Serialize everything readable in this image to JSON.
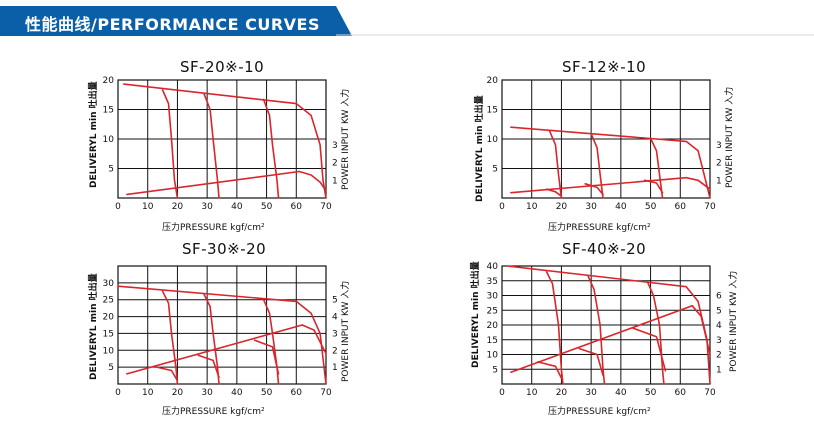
{
  "header": {
    "title": "性能曲线/PERFORMANCE CURVES",
    "bar_color": "#0a5fa8",
    "line_color": "#cfd8e3"
  },
  "colors": {
    "curve": "#d9262c",
    "grid": "#111111"
  },
  "chart_data": [
    {
      "type": "line",
      "title": "SF-20※-10",
      "xlabel": "压力PRESSURE kgf/cm²",
      "ylabel": "DELIVERYL min 吐出量",
      "y2label": "POWER INPUT KW 入力",
      "xlim": [
        0,
        70
      ],
      "x_ticks": [
        0,
        10,
        20,
        30,
        40,
        50,
        60,
        70
      ],
      "ylim": [
        0,
        20
      ],
      "y_ticks": [
        5,
        10,
        15,
        20
      ],
      "y2lim": [
        0,
        6.67
      ],
      "y2_ticks": [
        1,
        2,
        3
      ],
      "grid": true,
      "series": [
        {
          "axis": "left",
          "points": [
            [
              2,
              19.3
            ],
            [
              60,
              16
            ],
            [
              65,
              14
            ],
            [
              68,
              9
            ],
            [
              69,
              3
            ],
            [
              70,
              0
            ]
          ]
        },
        {
          "axis": "left",
          "points": [
            [
              15,
              18.3
            ],
            [
              17,
              16
            ],
            [
              18,
              10
            ],
            [
              19,
              3
            ],
            [
              20,
              0
            ]
          ]
        },
        {
          "axis": "left",
          "points": [
            [
              29,
              17.6
            ],
            [
              31,
              15
            ],
            [
              32,
              10
            ],
            [
              33.5,
              3
            ],
            [
              34,
              0
            ]
          ]
        },
        {
          "axis": "left",
          "points": [
            [
              49,
              16.7
            ],
            [
              51,
              14
            ],
            [
              52,
              9
            ],
            [
              53.5,
              3
            ],
            [
              54,
              0
            ]
          ]
        },
        {
          "axis": "right",
          "points": [
            [
              3,
              0.2
            ],
            [
              61,
              1.5
            ]
          ]
        },
        {
          "axis": "right",
          "points": [
            [
              61,
              1.5
            ],
            [
              65,
              1.3
            ],
            [
              68,
              0.9
            ],
            [
              70,
              0.4
            ]
          ]
        }
      ]
    },
    {
      "type": "line",
      "title": "SF-12※-10",
      "xlabel": "压力PRESSURE kgf/cm²",
      "ylabel": "DELIVERYL min 吐出量",
      "y2label": "POWER INPUT KW 入力",
      "xlim": [
        0,
        70
      ],
      "x_ticks": [
        0,
        10,
        20,
        30,
        40,
        50,
        60,
        70
      ],
      "ylim": [
        0,
        20
      ],
      "y_ticks": [
        5,
        10,
        15,
        20
      ],
      "y2lim": [
        0,
        6.67
      ],
      "y2_ticks": [
        1,
        2,
        3
      ],
      "grid": true,
      "series": [
        {
          "axis": "left",
          "points": [
            [
              3,
              12
            ],
            [
              62,
              9.6
            ],
            [
              66,
              8
            ],
            [
              68,
              4
            ],
            [
              70,
              0
            ]
          ]
        },
        {
          "axis": "left",
          "points": [
            [
              16,
              11.4
            ],
            [
              18,
              9
            ],
            [
              19,
              4
            ],
            [
              20,
              0
            ]
          ]
        },
        {
          "axis": "left",
          "points": [
            [
              30,
              10.9
            ],
            [
              32,
              8.5
            ],
            [
              33,
              4
            ],
            [
              34,
              0
            ]
          ]
        },
        {
          "axis": "left",
          "points": [
            [
              50,
              10.1
            ],
            [
              52,
              8
            ],
            [
              53,
              4
            ],
            [
              54,
              0
            ]
          ]
        },
        {
          "axis": "right",
          "points": [
            [
              3,
              0.3
            ],
            [
              62,
              1.15
            ]
          ]
        },
        {
          "axis": "right",
          "points": [
            [
              62,
              1.15
            ],
            [
              66,
              1.0
            ],
            [
              70,
              0.5
            ]
          ]
        },
        {
          "axis": "right",
          "points": [
            [
              15,
              0.5
            ],
            [
              18,
              0.35
            ],
            [
              20,
              0.1
            ]
          ]
        },
        {
          "axis": "right",
          "points": [
            [
              28,
              0.8
            ],
            [
              32,
              0.6
            ],
            [
              34,
              0.2
            ]
          ]
        },
        {
          "axis": "right",
          "points": [
            [
              48,
              1.0
            ],
            [
              52,
              0.85
            ],
            [
              54,
              0.3
            ]
          ]
        }
      ]
    },
    {
      "type": "line",
      "title": "SF-30※-20",
      "xlabel": "压力PRESSURE kgf/cm²",
      "ylabel": "DELIVERYL min 吐出量",
      "y2label": "POWER INPUT KW 入力",
      "xlim": [
        0,
        70
      ],
      "x_ticks": [
        0,
        10,
        20,
        30,
        40,
        50,
        60,
        70
      ],
      "ylim": [
        0,
        35
      ],
      "y_ticks": [
        5,
        10,
        15,
        20,
        25,
        30
      ],
      "y2lim": [
        0,
        7
      ],
      "y2_ticks": [
        1,
        2,
        3,
        4,
        5
      ],
      "grid": true,
      "series": [
        {
          "axis": "left",
          "points": [
            [
              0,
              29
            ],
            [
              60,
              24.5
            ],
            [
              65,
              21
            ],
            [
              68,
              15
            ],
            [
              70,
              0
            ]
          ]
        },
        {
          "axis": "left",
          "points": [
            [
              15,
              27.5
            ],
            [
              17,
              24
            ],
            [
              18,
              15
            ],
            [
              19.5,
              5
            ],
            [
              20,
              0
            ]
          ]
        },
        {
          "axis": "left",
          "points": [
            [
              29,
              26.5
            ],
            [
              31,
              23
            ],
            [
              32,
              15
            ],
            [
              33.5,
              5
            ],
            [
              34,
              0
            ]
          ]
        },
        {
          "axis": "left",
          "points": [
            [
              49,
              25
            ],
            [
              51,
              21
            ],
            [
              52,
              15
            ],
            [
              53.5,
              5
            ],
            [
              54,
              0
            ]
          ]
        },
        {
          "axis": "right",
          "points": [
            [
              3,
              0.6
            ],
            [
              62,
              3.5
            ]
          ]
        },
        {
          "axis": "right",
          "points": [
            [
              62,
              3.5
            ],
            [
              66,
              3.2
            ],
            [
              70,
              1.8
            ]
          ]
        },
        {
          "axis": "right",
          "points": [
            [
              13,
              1.0
            ],
            [
              18,
              0.8
            ],
            [
              20,
              0.2
            ]
          ]
        },
        {
          "axis": "right",
          "points": [
            [
              27,
              1.7
            ],
            [
              32,
              1.4
            ],
            [
              34,
              0.4
            ]
          ]
        },
        {
          "axis": "right",
          "points": [
            [
              46,
              2.6
            ],
            [
              52,
              2.2
            ],
            [
              54,
              0.6
            ]
          ]
        }
      ]
    },
    {
      "type": "line",
      "title": "SF-40※-20",
      "xlabel": "压力PRESSURE kgf/cm²",
      "ylabel": "DELIVERYL min 吐出量",
      "y2label": "POWER INPUT KW 入力",
      "xlim": [
        0,
        70
      ],
      "x_ticks": [
        0,
        10,
        20,
        30,
        40,
        50,
        60,
        70
      ],
      "ylim": [
        0,
        40
      ],
      "y_ticks": [
        5,
        10,
        15,
        20,
        25,
        30,
        35,
        40
      ],
      "y2lim": [
        0,
        8
      ],
      "y2_ticks": [
        1,
        2,
        3,
        4,
        5,
        6
      ],
      "grid": true,
      "series": [
        {
          "axis": "left",
          "points": [
            [
              2,
              40
            ],
            [
              62,
              33
            ],
            [
              66,
              28
            ],
            [
              69,
              15
            ],
            [
              70,
              0
            ]
          ]
        },
        {
          "axis": "left",
          "points": [
            [
              15,
              38
            ],
            [
              17,
              34
            ],
            [
              19,
              20
            ],
            [
              20,
              5
            ],
            [
              20.5,
              0
            ]
          ]
        },
        {
          "axis": "left",
          "points": [
            [
              29,
              36.5
            ],
            [
              31,
              32
            ],
            [
              33,
              20
            ],
            [
              34,
              5
            ],
            [
              34.5,
              0
            ]
          ]
        },
        {
          "axis": "left",
          "points": [
            [
              49,
              34.5
            ],
            [
              51,
              30
            ],
            [
              53,
              20
            ],
            [
              54,
              5
            ],
            [
              54.5,
              0
            ]
          ]
        },
        {
          "axis": "right",
          "points": [
            [
              3,
              0.8
            ],
            [
              64,
              5.3
            ]
          ]
        },
        {
          "axis": "right",
          "points": [
            [
              64,
              5.3
            ],
            [
              67,
              4.6
            ],
            [
              70,
              2.0
            ]
          ]
        },
        {
          "axis": "right",
          "points": [
            [
              12,
              1.5
            ],
            [
              18,
              1.2
            ],
            [
              20,
              0.4
            ]
          ]
        },
        {
          "axis": "right",
          "points": [
            [
              26,
              2.4
            ],
            [
              32,
              2.0
            ],
            [
              34,
              0.6
            ]
          ]
        },
        {
          "axis": "right",
          "points": [
            [
              44,
              3.8
            ],
            [
              52,
              3.2
            ],
            [
              55,
              0.9
            ]
          ]
        }
      ]
    }
  ]
}
